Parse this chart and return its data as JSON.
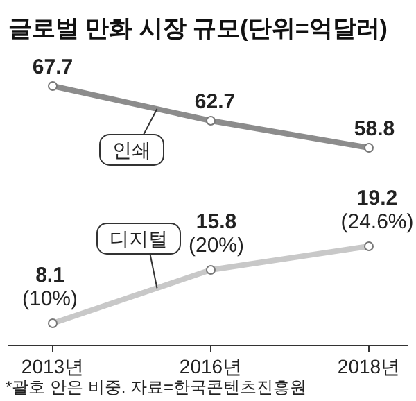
{
  "chart_data": [
    {
      "type": "line",
      "title": "글로벌 만화 시장 규모(단위=억달러)",
      "categories": [
        null,
        null,
        null
      ],
      "tick_labels": false,
      "marker": "circle",
      "data_labels": true,
      "series": [
        {
          "name": "인쇄",
          "color": "#8c8c8c",
          "values": [
            67.7,
            62.7,
            58.8
          ]
        }
      ]
    },
    {
      "type": "line",
      "categories": [
        "2013년",
        "2016년",
        "2018년"
      ],
      "tick_labels": "x",
      "marker": "circle",
      "annotations": [
        "*괄호 안은 비중. 자료=한국콘텐츠진흥원"
      ],
      "series": [
        {
          "name": "디지털",
          "color": "#c8c8c8",
          "values": [
            8.1,
            15.8,
            19.2
          ],
          "value_labels": [
            "8.1\n(10%)",
            "15.8\n(20%)",
            "19.2\n(24.6%)"
          ]
        }
      ]
    }
  ]
}
